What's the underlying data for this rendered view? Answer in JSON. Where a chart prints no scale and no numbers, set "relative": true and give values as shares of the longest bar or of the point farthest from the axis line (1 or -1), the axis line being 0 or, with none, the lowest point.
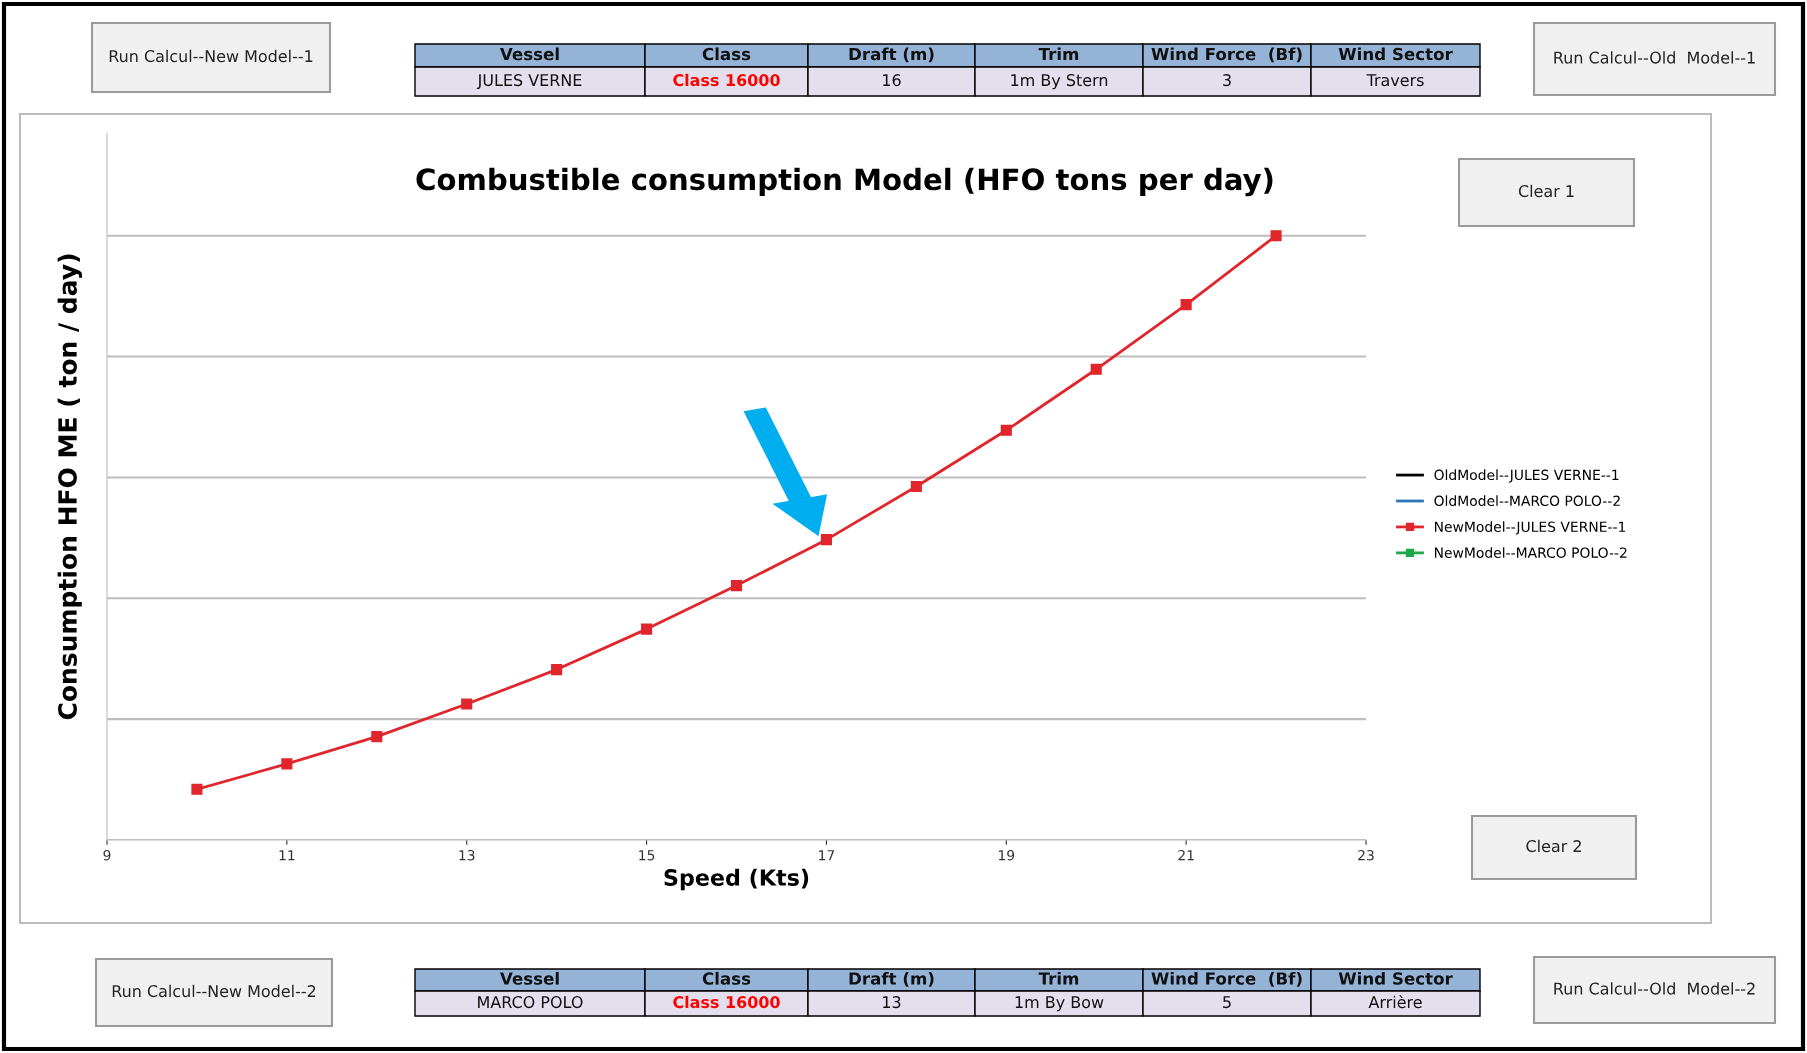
{
  "chart_data": {
    "type": "line",
    "title": "Combustible consumption Model (HFO tons per day)",
    "xlabel": "Speed (Kts)",
    "ylabel": "Consumption HFO ME ( ton / day)",
    "x": [
      10,
      11,
      12,
      13,
      14,
      15,
      16,
      17,
      18,
      19,
      20,
      21,
      22
    ],
    "relative": true,
    "xlim": [
      9,
      23
    ],
    "xticks": [
      9,
      11,
      13,
      15,
      17,
      19,
      21,
      23
    ],
    "grid": "y",
    "legend": "right",
    "tick_labels": "x",
    "series": [
      {
        "name": "OldModel--JULES VERNE--1",
        "color": "#000000",
        "marker": "none",
        "values": [
          null,
          null,
          null,
          null,
          null,
          null,
          null,
          null,
          null,
          null,
          null,
          null,
          null
        ]
      },
      {
        "name": "OldModel--MARCO POLO--2",
        "color": "#2e75b6",
        "marker": "none",
        "values": [
          null,
          null,
          null,
          null,
          null,
          null,
          null,
          null,
          null,
          null,
          null,
          null,
          null
        ]
      },
      {
        "name": "NewModel--JULES VERNE--1",
        "color": "#e0262c",
        "marker": "square",
        "values": [
          0.084,
          0.126,
          0.171,
          0.225,
          0.282,
          0.349,
          0.421,
          0.497,
          0.585,
          0.678,
          0.779,
          0.886,
          1.0
        ]
      },
      {
        "name": "NewModel--MARCO POLO--2",
        "color": "#1fa84a",
        "marker": "square",
        "values": [
          null,
          null,
          null,
          null,
          null,
          null,
          null,
          null,
          null,
          null,
          null,
          null,
          null
        ]
      }
    ],
    "annotations": [
      "Run Calcul--New Model--1",
      "Run Calcul--Old  Model--1",
      "Clear 1",
      "Clear 2",
      "Run Calcul--New Model--2",
      "Run Calcul--Old  Model--2",
      "Vessel",
      "Class",
      "Draft (m)",
      "Trim",
      "Wind Force  (Bf)",
      "Wind Sector",
      "JULES VERNE",
      "Class 16000",
      "16",
      "1m By Stern",
      "3",
      "Travers",
      "Vessel",
      "Class",
      "Draft (m)",
      "Trim",
      "Wind Force  (Bf)",
      "Wind Sector",
      "MARCO POLO",
      "Class 16000",
      "13",
      "1m By Bow",
      "5",
      "Arrière"
    ]
  }
}
